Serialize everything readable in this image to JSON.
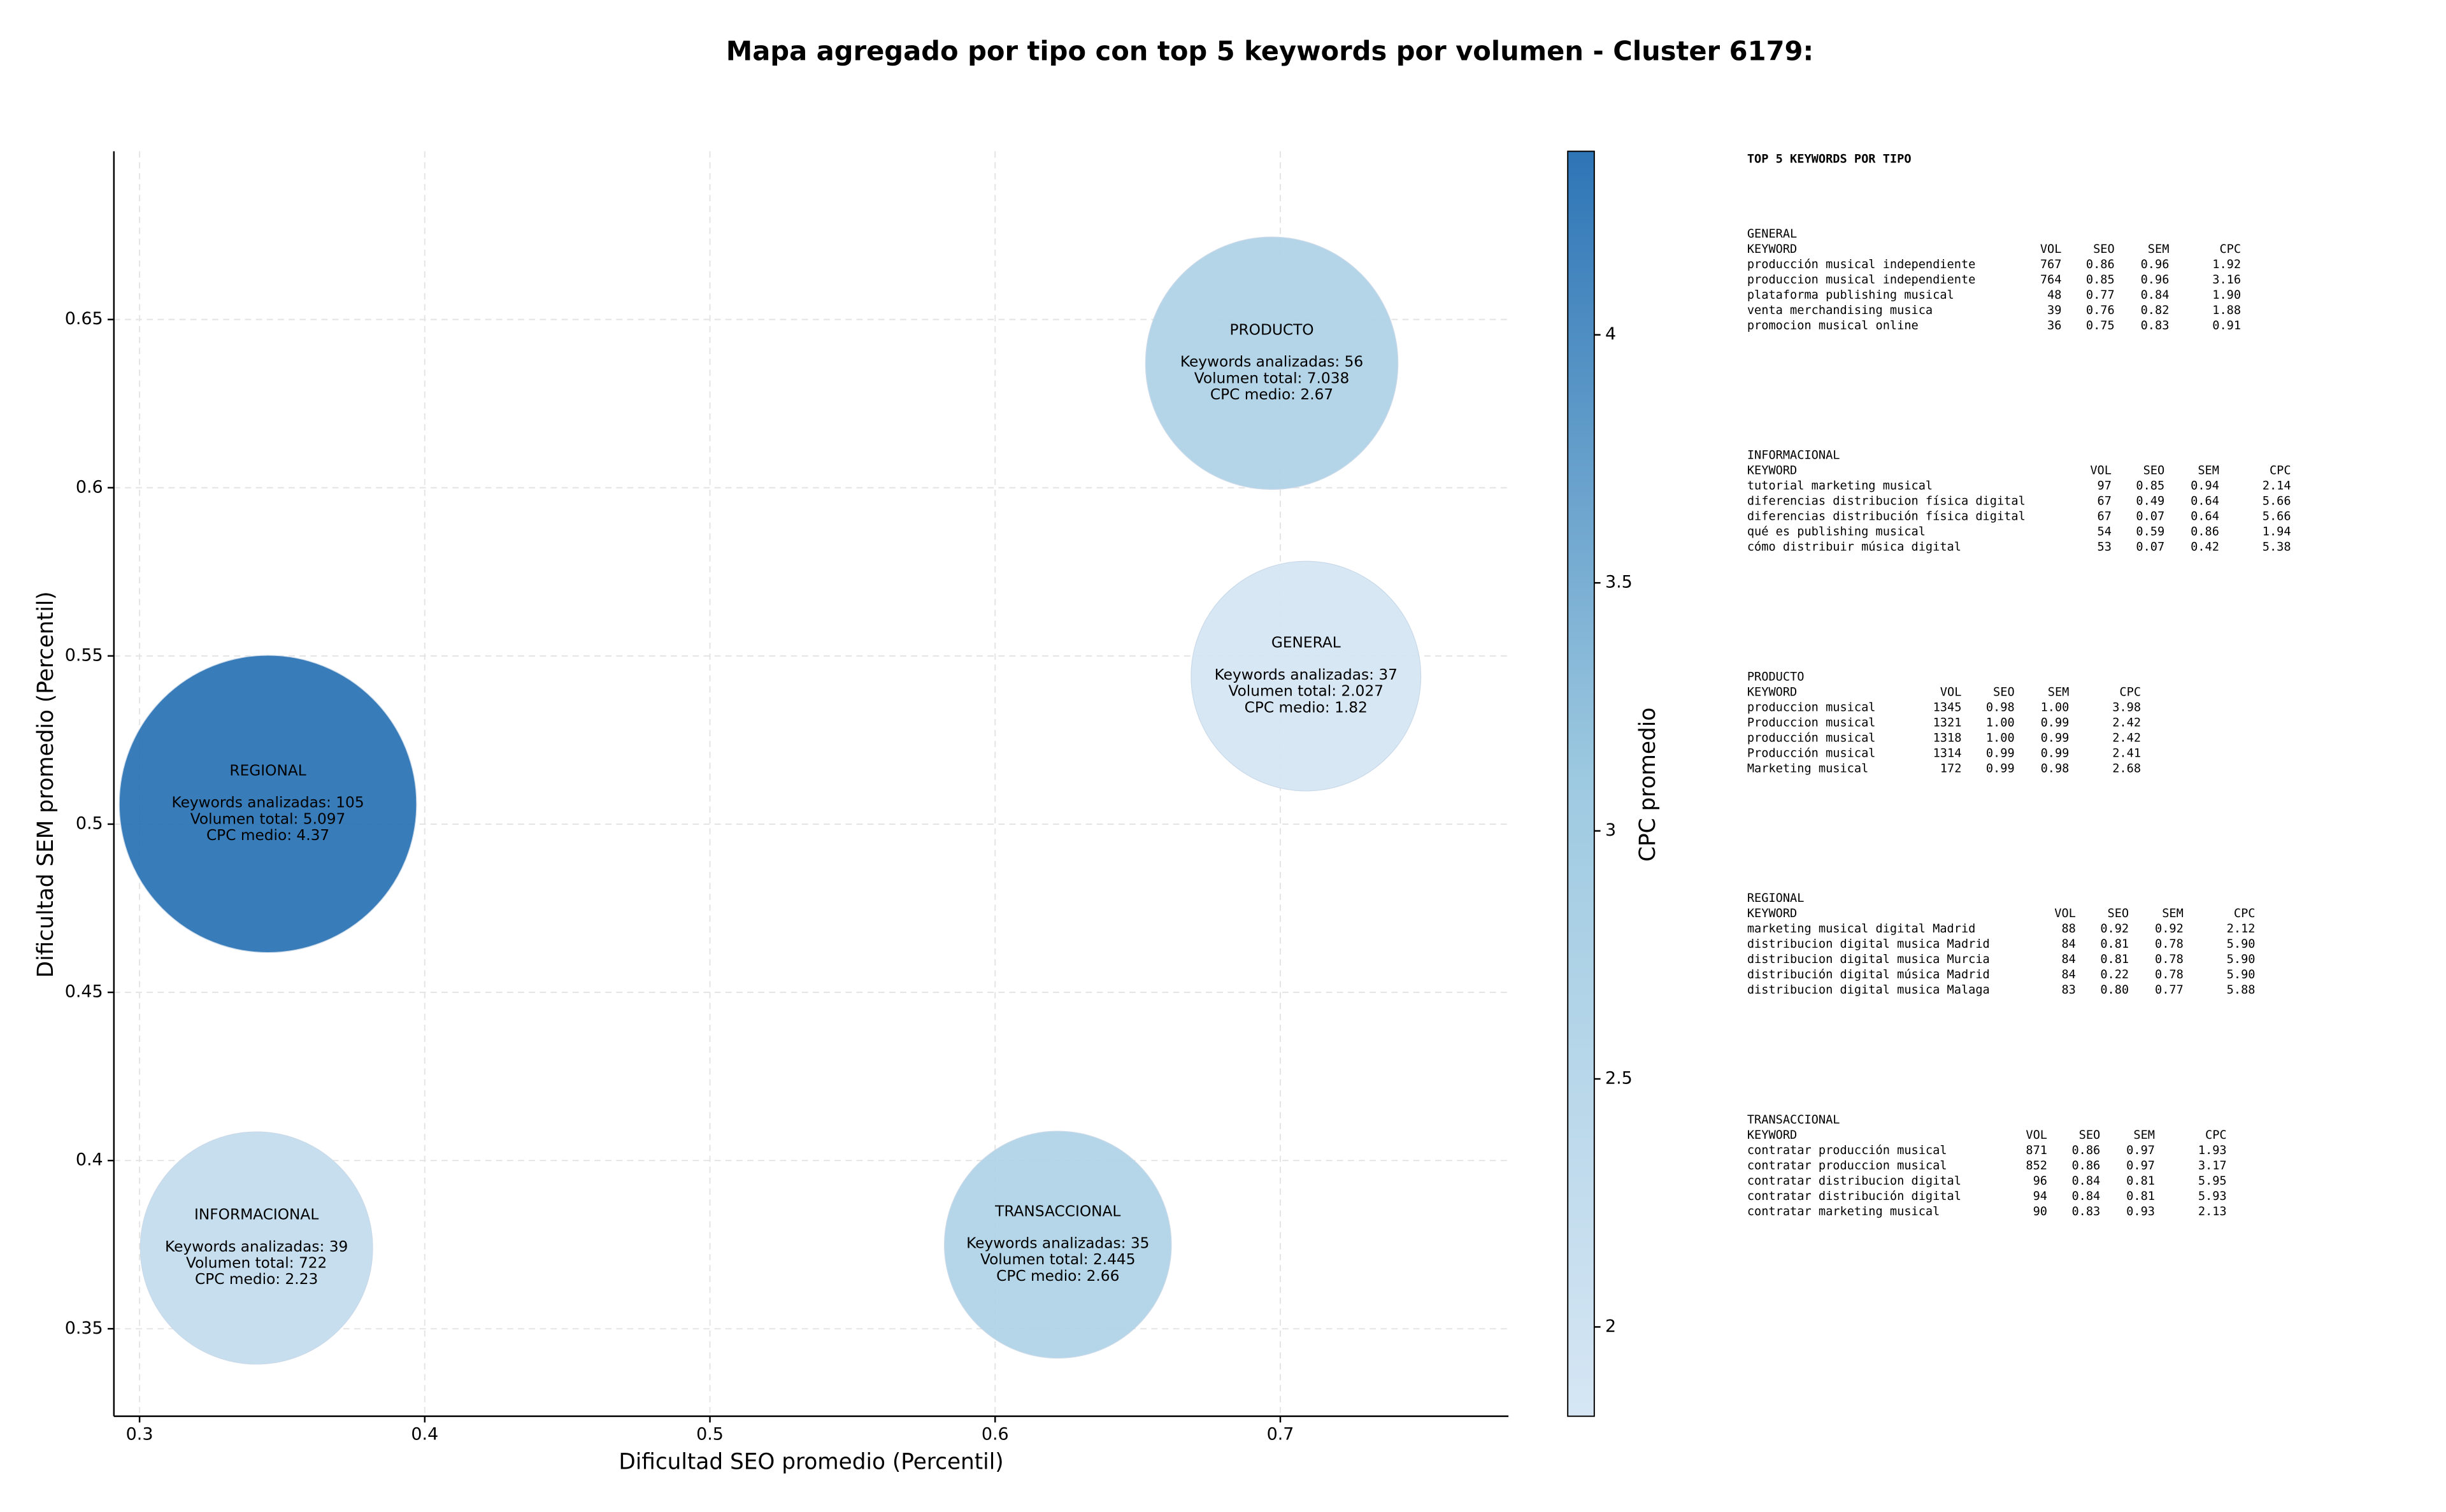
{
  "chart_data": {
    "type": "bubble",
    "title": "Mapa agregado por tipo con top 5 keywords por volumen - Cluster 6179:",
    "x_label": "Dificultad SEO promedio (Percentil)",
    "y_label": "Dificultad SEM promedio (Percentil)",
    "xlim": [
      0.291,
      0.78
    ],
    "xticks": [
      0.3,
      0.4,
      0.5,
      0.6,
      0.7
    ],
    "ylim": [
      0.324,
      0.7
    ],
    "yticks": [
      0.35,
      0.4,
      0.45,
      0.5,
      0.55,
      0.6,
      0.65
    ],
    "grid": true,
    "colorbar": {
      "label": "CPC promedio",
      "lim": [
        1.82,
        4.37
      ],
      "ticks": [
        2.0,
        2.5,
        3.0,
        3.5,
        4.0
      ],
      "colors": [
        "#d6e6f4",
        "#9ecae1",
        "#2e75b6"
      ]
    },
    "points": [
      {
        "name": "PRODUCTO",
        "x": 0.697,
        "y": 0.637,
        "keywords": 56,
        "volume": 7038,
        "cpc": 2.67,
        "lines": [
          "Keywords analizadas: 56",
          "Volumen total: 7.038",
          "CPC medio: 2.67"
        ]
      },
      {
        "name": "GENERAL",
        "x": 0.709,
        "y": 0.544,
        "keywords": 37,
        "volume": 2027,
        "cpc": 1.82,
        "lines": [
          "Keywords analizadas: 37",
          "Volumen total: 2.027",
          "CPC medio: 1.82"
        ]
      },
      {
        "name": "REGIONAL",
        "x": 0.345,
        "y": 0.506,
        "keywords": 105,
        "volume": 5097,
        "cpc": 4.37,
        "lines": [
          "Keywords analizadas: 105",
          "Volumen total: 5.097",
          "CPC medio: 4.37"
        ]
      },
      {
        "name": "INFORMACIONAL",
        "x": 0.341,
        "y": 0.374,
        "keywords": 39,
        "volume": 722,
        "cpc": 2.23,
        "lines": [
          "Keywords analizadas: 39",
          "Volumen total: 722",
          "CPC medio: 2.23"
        ]
      },
      {
        "name": "TRANSACCIONAL",
        "x": 0.622,
        "y": 0.375,
        "keywords": 35,
        "volume": 2445,
        "cpc": 2.66,
        "lines": [
          "Keywords analizadas: 35",
          "Volumen total: 2.445",
          "CPC medio: 2.66"
        ]
      }
    ]
  },
  "keyword_panel": {
    "title": "TOP 5 KEYWORDS POR TIPO",
    "columns": [
      "KEYWORD",
      "VOL",
      "SEO",
      "SEM",
      "CPC"
    ],
    "groups": [
      {
        "name": "GENERAL",
        "rows": [
          [
            "producción musical independiente",
            "767",
            "0.86",
            "0.96",
            "1.92"
          ],
          [
            "produccion musical independiente",
            "764",
            "0.85",
            "0.96",
            "3.16"
          ],
          [
            "plataforma publishing musical",
            "48",
            "0.77",
            "0.84",
            "1.90"
          ],
          [
            "venta merchandising musica",
            "39",
            "0.76",
            "0.82",
            "1.88"
          ],
          [
            "promocion musical online",
            "36",
            "0.75",
            "0.83",
            "0.91"
          ]
        ]
      },
      {
        "name": "INFORMACIONAL",
        "rows": [
          [
            "tutorial marketing musical",
            "97",
            "0.85",
            "0.94",
            "2.14"
          ],
          [
            "diferencias distribucion física digital",
            "67",
            "0.49",
            "0.64",
            "5.66"
          ],
          [
            "diferencias distribución física digital",
            "67",
            "0.07",
            "0.64",
            "5.66"
          ],
          [
            "qué es publishing musical",
            "54",
            "0.59",
            "0.86",
            "1.94"
          ],
          [
            "cómo distribuir música digital",
            "53",
            "0.07",
            "0.42",
            "5.38"
          ]
        ]
      },
      {
        "name": "PRODUCTO",
        "rows": [
          [
            "produccion musical",
            "1345",
            "0.98",
            "1.00",
            "3.98"
          ],
          [
            "Produccion musical",
            "1321",
            "1.00",
            "0.99",
            "2.42"
          ],
          [
            "producción musical",
            "1318",
            "1.00",
            "0.99",
            "2.42"
          ],
          [
            "Producción musical",
            "1314",
            "0.99",
            "0.99",
            "2.41"
          ],
          [
            "Marketing musical",
            "172",
            "0.99",
            "0.98",
            "2.68"
          ]
        ]
      },
      {
        "name": "REGIONAL",
        "rows": [
          [
            "marketing musical digital Madrid",
            "88",
            "0.92",
            "0.92",
            "2.12"
          ],
          [
            "distribucion digital musica Madrid",
            "84",
            "0.81",
            "0.78",
            "5.90"
          ],
          [
            "distribucion digital musica Murcia",
            "84",
            "0.81",
            "0.78",
            "5.90"
          ],
          [
            "distribución digital música Madrid",
            "84",
            "0.22",
            "0.78",
            "5.90"
          ],
          [
            "distribucion digital musica Malaga",
            "83",
            "0.80",
            "0.77",
            "5.88"
          ]
        ]
      },
      {
        "name": "TRANSACCIONAL",
        "rows": [
          [
            "contratar producción musical",
            "871",
            "0.86",
            "0.97",
            "1.93"
          ],
          [
            "contratar produccion musical",
            "852",
            "0.86",
            "0.97",
            "3.17"
          ],
          [
            "contratar distribucion digital",
            "96",
            "0.84",
            "0.81",
            "5.95"
          ],
          [
            "contratar distribución digital",
            "94",
            "0.84",
            "0.81",
            "5.93"
          ],
          [
            "contratar marketing musical",
            "90",
            "0.83",
            "0.93",
            "2.13"
          ]
        ]
      }
    ]
  }
}
